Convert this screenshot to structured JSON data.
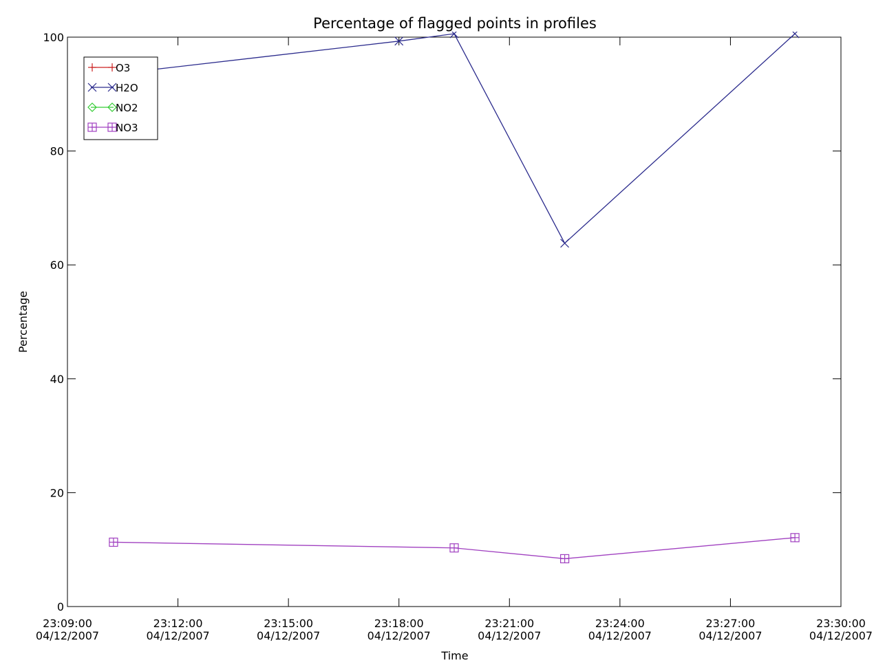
{
  "chart_data": {
    "type": "line",
    "title": "Percentage of flagged points in profiles",
    "xlabel": "Time",
    "ylabel": "Percentage",
    "xlim": [
      "23:09:00 04/12/2007",
      "23:30:00 04/12/2007"
    ],
    "ylim": [
      0,
      100
    ],
    "grid": false,
    "legend_position": "top-left",
    "x_ticks": [
      {
        "time": "23:09:00",
        "date": "04/12/2007"
      },
      {
        "time": "23:12:00",
        "date": "04/12/2007"
      },
      {
        "time": "23:15:00",
        "date": "04/12/2007"
      },
      {
        "time": "23:18:00",
        "date": "04/12/2007"
      },
      {
        "time": "23:21:00",
        "date": "04/12/2007"
      },
      {
        "time": "23:24:00",
        "date": "04/12/2007"
      },
      {
        "time": "23:27:00",
        "date": "04/12/2007"
      },
      {
        "time": "23:30:00",
        "date": "04/12/2007"
      }
    ],
    "y_ticks": [
      "0",
      "20",
      "40",
      "60",
      "80",
      "100"
    ],
    "series": [
      {
        "name": "O3",
        "color": "#cc2222",
        "marker": "plus",
        "x": [],
        "y": []
      },
      {
        "name": "H2O",
        "color": "#2a2a8c",
        "marker": "x",
        "x": [
          "23:10:15",
          "23:18:00",
          "23:19:30",
          "23:22:30",
          "23:28:45"
        ],
        "y": [
          93.5,
          99.3,
          100.6,
          63.8,
          100.6
        ]
      },
      {
        "name": "NO2",
        "color": "#33cc33",
        "marker": "diamond",
        "x": [],
        "y": []
      },
      {
        "name": "NO3",
        "color": "#a040c0",
        "marker": "square-plus",
        "x": [
          "23:10:15",
          "23:19:30",
          "23:22:30",
          "23:28:45"
        ],
        "y": [
          11.3,
          10.3,
          8.4,
          12.1
        ]
      }
    ]
  }
}
